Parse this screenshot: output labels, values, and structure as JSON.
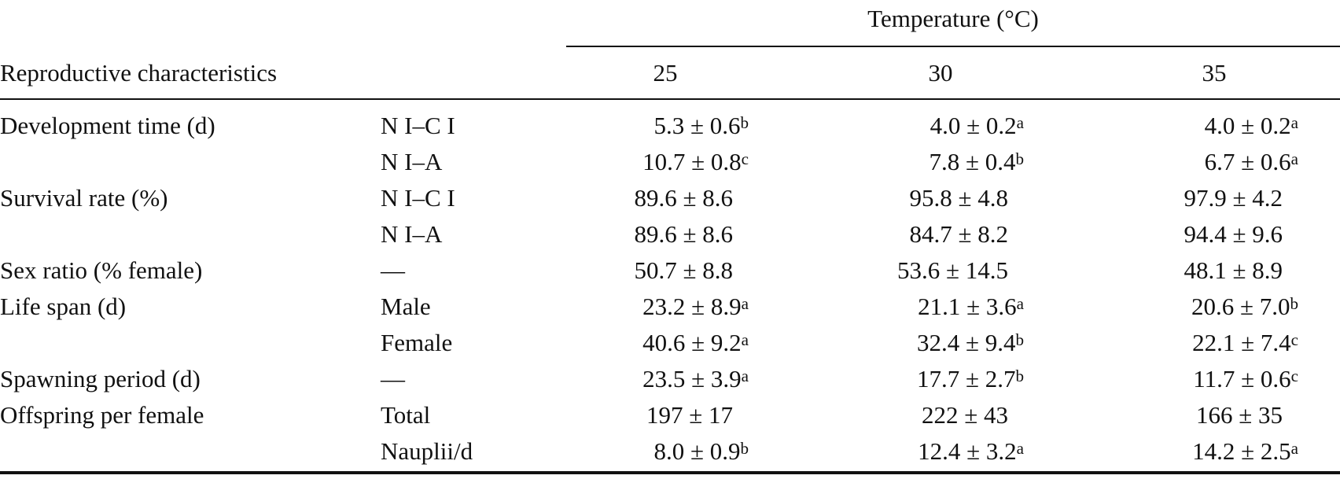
{
  "table": {
    "spanner_header": "Temperature (°C)",
    "row_header": "Reproductive characteristics",
    "temperatures": [
      "25",
      "30",
      "35"
    ],
    "rows": [
      {
        "characteristic": "Development time (d)",
        "stage": "N I–C I",
        "v25": "5.3 ± 0.6",
        "s25": "b",
        "v30": "4.0 ± 0.2",
        "s30": "a",
        "v35": "4.0 ± 0.2",
        "s35": "a"
      },
      {
        "characteristic": "",
        "stage": "N I–A",
        "v25": "10.7 ± 0.8",
        "s25": "c",
        "v30": "7.8 ± 0.4",
        "s30": "b",
        "v35": "6.7 ± 0.6",
        "s35": "a"
      },
      {
        "characteristic": "Survival rate (%)",
        "stage": "N I–C I",
        "v25": "89.6 ± 8.6",
        "s25": "",
        "v30": "95.8 ± 4.8",
        "s30": "",
        "v35": "97.9 ± 4.2",
        "s35": ""
      },
      {
        "characteristic": "",
        "stage": "N I–A",
        "v25": "89.6 ± 8.6",
        "s25": "",
        "v30": "84.7 ± 8.2",
        "s30": "",
        "v35": "94.4 ± 9.6",
        "s35": ""
      },
      {
        "characteristic": "Sex ratio (% female)",
        "stage": "—",
        "v25": "50.7 ± 8.8",
        "s25": "",
        "v30": "53.6 ± 14.5",
        "s30": "",
        "v35": "48.1 ± 8.9",
        "s35": ""
      },
      {
        "characteristic": "Life span (d)",
        "stage": "Male",
        "v25": "23.2 ± 8.9",
        "s25": "a",
        "v30": "21.1 ± 3.6",
        "s30": "a",
        "v35": "20.6 ± 7.0",
        "s35": "b"
      },
      {
        "characteristic": "",
        "stage": "Female",
        "v25": "40.6 ± 9.2",
        "s25": "a",
        "v30": "32.4 ± 9.4",
        "s30": "b",
        "v35": "22.1 ± 7.4",
        "s35": "c"
      },
      {
        "characteristic": "Spawning period (d)",
        "stage": "—",
        "v25": "23.5 ± 3.9",
        "s25": "a",
        "v30": "17.7 ± 2.7",
        "s30": "b",
        "v35": "11.7 ± 0.6",
        "s35": "c"
      },
      {
        "characteristic": "Offspring per female",
        "stage": "Total",
        "v25": "197 ± 17",
        "s25": "",
        "v30": "222 ± 43",
        "s30": "",
        "v35": "166 ± 35",
        "s35": ""
      },
      {
        "characteristic": "",
        "stage": "Nauplii/d",
        "v25": "8.0 ± 0.9",
        "s25": "b",
        "v30": "12.4 ± 3.2",
        "s30": "a",
        "v35": "14.2 ± 2.5",
        "s35": "a"
      }
    ]
  }
}
